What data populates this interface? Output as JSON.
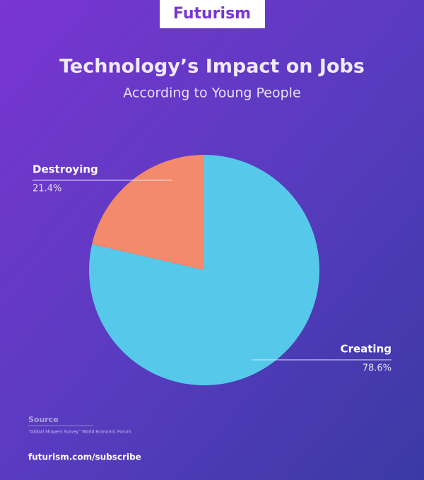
{
  "header": {
    "logo": "Futurism"
  },
  "chart_data": {
    "type": "pie",
    "title": "Technology’s Impact on Jobs",
    "subtitle": "According to Young People",
    "categories": [
      "Creating",
      "Destroying"
    ],
    "values": [
      78.6,
      21.4
    ],
    "value_labels": [
      "78.6%",
      "21.4%"
    ],
    "colors": [
      "#56c9ea",
      "#f28a6b"
    ]
  },
  "footer": {
    "source_label": "Source",
    "source": "“Global Shapers Survey” World Economic Forum",
    "link": "futurism.com/subscribe"
  }
}
